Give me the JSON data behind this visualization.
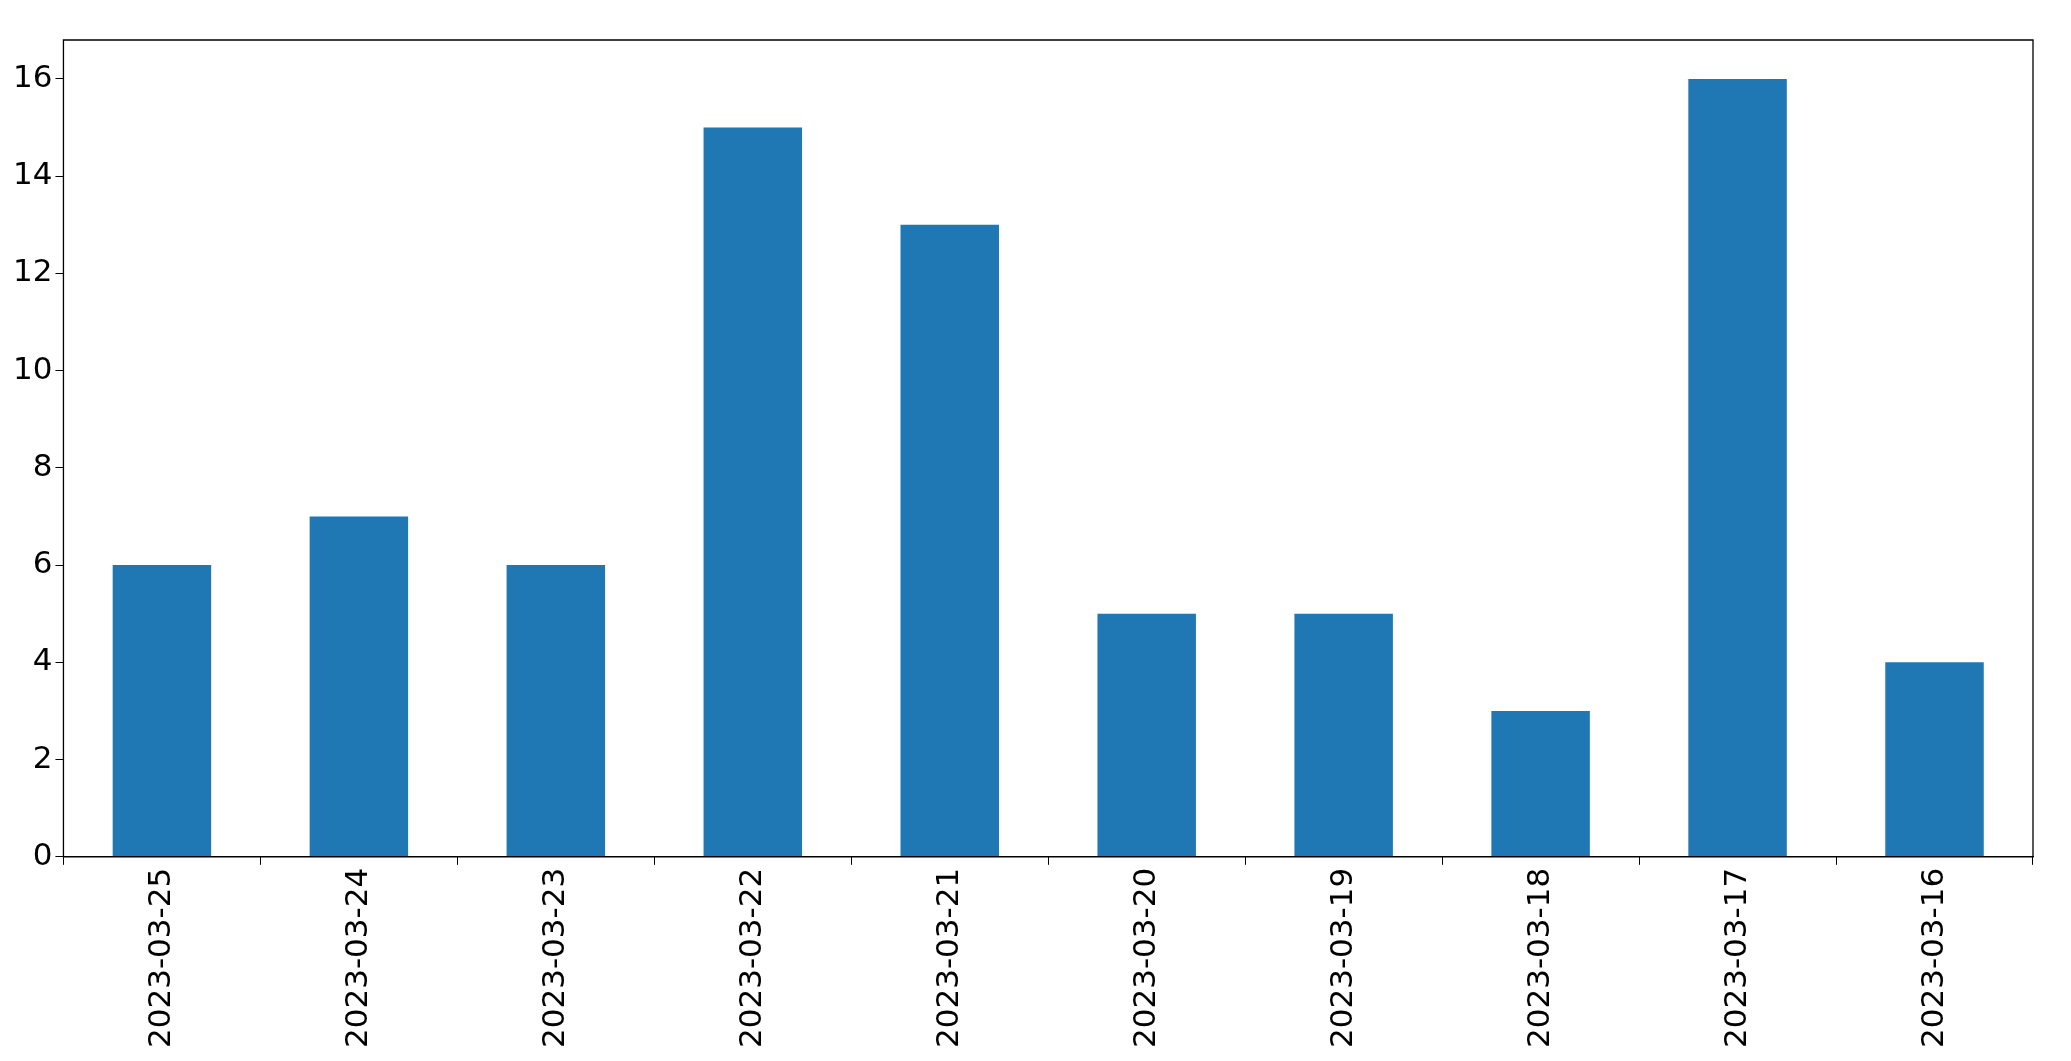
{
  "chart_data": {
    "type": "bar",
    "categories": [
      "2023-03-25",
      "2023-03-24",
      "2023-03-23",
      "2023-03-22",
      "2023-03-21",
      "2023-03-20",
      "2023-03-19",
      "2023-03-18",
      "2023-03-17",
      "2023-03-16"
    ],
    "values": [
      6,
      7,
      6,
      15,
      13,
      5,
      5,
      3,
      16,
      4
    ],
    "color": "#1f77b4",
    "ylim": [
      0,
      16.8
    ],
    "yticks": [
      0,
      2,
      4,
      6,
      8,
      10,
      12,
      14,
      16
    ],
    "grid": false,
    "legend": false
  }
}
